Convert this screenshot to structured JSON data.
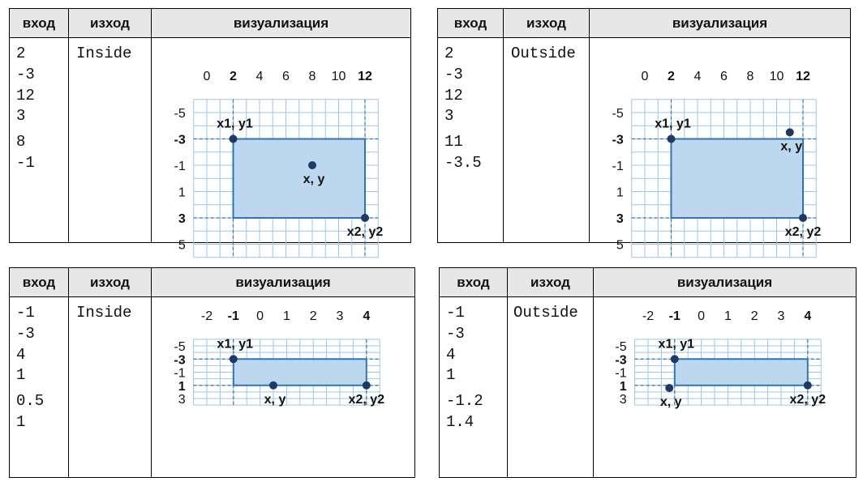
{
  "headers": {
    "input": "вход",
    "output": "изход",
    "visualization": "визуализация"
  },
  "examples": [
    {
      "inputs": [
        "2",
        "-3",
        "12",
        "3",
        "8",
        "-1"
      ],
      "output": "Inside",
      "x_ticks": [
        "0",
        "2",
        "4",
        "6",
        "8",
        "10",
        "12"
      ],
      "x_ticks_bold": [
        "2",
        "12"
      ],
      "y_ticks": [
        "-5",
        "-3",
        "-1",
        "1",
        "3",
        "5"
      ],
      "y_ticks_bold": [
        "-3",
        "3"
      ],
      "rect": {
        "x1": 2,
        "y1": -3,
        "x2": 12,
        "y2": 3
      },
      "point": {
        "x": 8,
        "y": -1
      },
      "labels": {
        "p1": "x1, y1",
        "p2": "x2, y2",
        "pt": "x, y"
      }
    },
    {
      "inputs": [
        "2",
        "-3",
        "12",
        "3",
        "11",
        "-3.5"
      ],
      "output": "Outside",
      "x_ticks": [
        "0",
        "2",
        "4",
        "6",
        "8",
        "10",
        "12"
      ],
      "x_ticks_bold": [
        "2",
        "12"
      ],
      "y_ticks": [
        "-5",
        "-3",
        "-1",
        "1",
        "3",
        "5"
      ],
      "y_ticks_bold": [
        "-3",
        "3"
      ],
      "rect": {
        "x1": 2,
        "y1": -3,
        "x2": 12,
        "y2": 3
      },
      "point": {
        "x": 11,
        "y": -3.5
      },
      "labels": {
        "p1": "x1, y1",
        "p2": "x2, y2",
        "pt": "x, y"
      }
    },
    {
      "inputs": [
        "-1",
        "-3",
        "4",
        "1",
        "0.5",
        "1"
      ],
      "output": "Inside",
      "x_ticks": [
        "-2",
        "-1",
        "0",
        "1",
        "2",
        "3",
        "4"
      ],
      "x_ticks_bold": [
        "-1",
        "4"
      ],
      "y_ticks": [
        "-5",
        "-3",
        "-1",
        "1",
        "3"
      ],
      "y_ticks_bold": [
        "-3",
        "1"
      ],
      "rect": {
        "x1": -1,
        "y1": -3,
        "x2": 4,
        "y2": 1
      },
      "point": {
        "x": 0.5,
        "y": 1
      },
      "labels": {
        "p1": "x1, y1",
        "p2": "x2, y2",
        "pt": "x, y"
      }
    },
    {
      "inputs": [
        "-1",
        "-3",
        "4",
        "1",
        "-1.2",
        "1.4"
      ],
      "output": "Outside",
      "x_ticks": [
        "-2",
        "-1",
        "0",
        "1",
        "2",
        "3",
        "4"
      ],
      "x_ticks_bold": [
        "-1",
        "4"
      ],
      "y_ticks": [
        "-5",
        "-3",
        "-1",
        "1",
        "3"
      ],
      "y_ticks_bold": [
        "-3",
        "1"
      ],
      "rect": {
        "x1": -1,
        "y1": -3,
        "x2": 4,
        "y2": 1
      },
      "point": {
        "x": -1.2,
        "y": 1.4
      },
      "labels": {
        "p1": "x1, y1",
        "p2": "x2, y2",
        "pt": "x, y"
      }
    }
  ]
}
